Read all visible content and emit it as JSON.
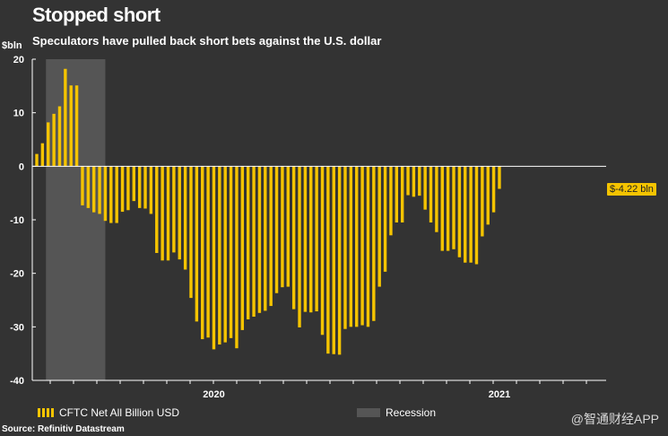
{
  "header": {
    "title": "Stopped short",
    "subtitle": "Speculators have pulled back short bets against the U.S. dollar",
    "unit_label": "$bln"
  },
  "legend": {
    "series_label": "CFTC Net All Billion USD",
    "recession_label": "Recession"
  },
  "callout": {
    "label": "$-4.22 bln"
  },
  "footer": {
    "source": "Source: Refinitiv Datastream",
    "watermark": "@智通财经APP"
  },
  "colors": {
    "bar": "#f5c400",
    "recession": "#555555",
    "axis": "#ffffff",
    "background": "#333333"
  },
  "chart_data": {
    "type": "bar",
    "title": "Stopped short",
    "subtitle": "Speculators have pulled back short bets against the U.S. dollar",
    "ylabel": "$bln",
    "ylim": [
      -40,
      20
    ],
    "yticks": [
      20,
      10,
      0,
      -10,
      -20,
      -30,
      -40
    ],
    "xtick_labels": [
      "2020",
      "2021"
    ],
    "year_label_bar_index": [
      31,
      81
    ],
    "recession_bar_range": [
      2,
      12
    ],
    "series": [
      {
        "name": "CFTC Net All Billion USD",
        "values": [
          2.3,
          4.3,
          8.2,
          9.8,
          11.2,
          18.2,
          15.1,
          15.1,
          -7.3,
          -7.8,
          -8.6,
          -8.9,
          -10.2,
          -10.6,
          -10.6,
          -8.5,
          -8.2,
          -6.5,
          -7.8,
          -7.9,
          -8.9,
          -16.2,
          -17.6,
          -17.6,
          -16.1,
          -17.4,
          -19.3,
          -24.6,
          -29.0,
          -32.3,
          -32.0,
          -34.2,
          -33.3,
          -32.9,
          -32.1,
          -34.0,
          -30.6,
          -28.6,
          -28.1,
          -27.4,
          -27.0,
          -26.1,
          -23.7,
          -22.6,
          -22.5,
          -26.7,
          -30.1,
          -27.2,
          -27.3,
          -27.1,
          -31.5,
          -35.0,
          -35.1,
          -35.2,
          -30.4,
          -30.0,
          -30.0,
          -29.7,
          -30.0,
          -28.9,
          -22.5,
          -19.7,
          -12.9,
          -10.5,
          -10.5,
          -5.4,
          -5.7,
          -5.5,
          -8.1,
          -10.5,
          -12.3,
          -15.8,
          -15.8,
          -15.5,
          -17.0,
          -18.0,
          -18.0,
          -18.3,
          -13.1,
          -10.9,
          -8.6,
          -4.22
        ]
      }
    ]
  }
}
